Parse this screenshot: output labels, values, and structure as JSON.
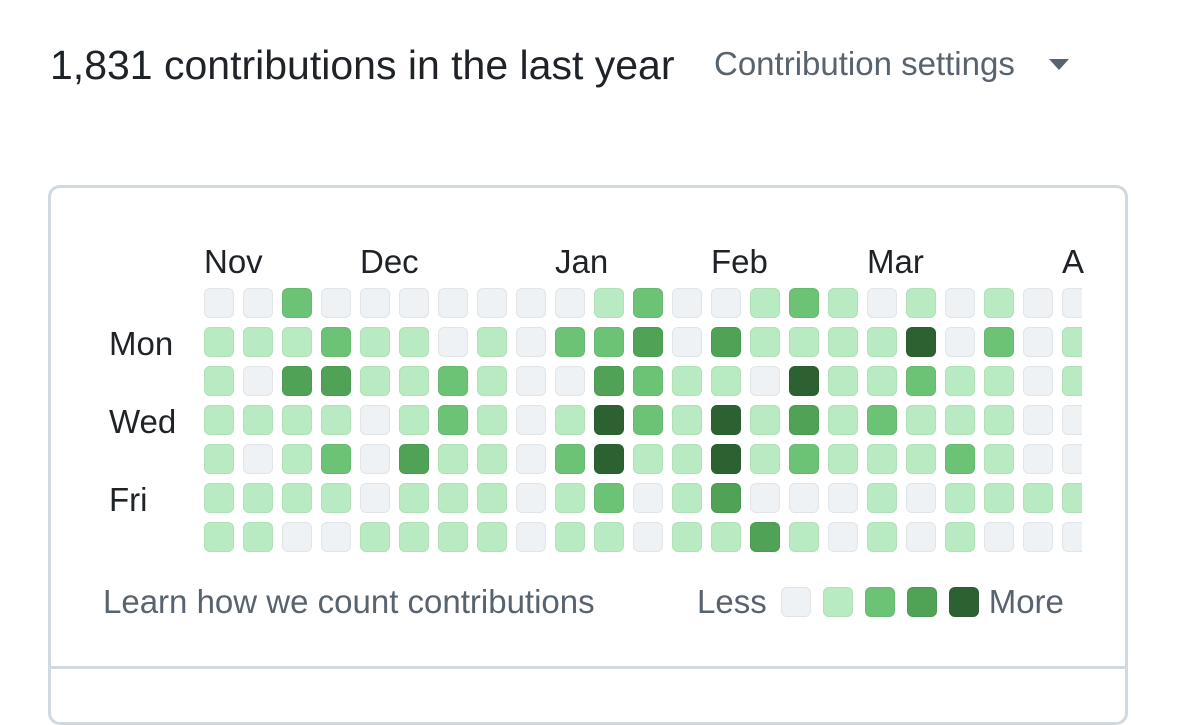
{
  "header": {
    "title": "1,831 contributions in the last year",
    "settings_label": "Contribution settings"
  },
  "colors": {
    "level0": "#eff2f5",
    "level1": "#b9ebc2",
    "level2": "#6cc275",
    "level3": "#4fa256",
    "level4": "#2c6131"
  },
  "graph": {
    "months": [
      "Nov",
      "Dec",
      "Jan",
      "Feb",
      "Mar",
      "A"
    ],
    "day_labels": [
      "Mon",
      "Wed",
      "Fri"
    ],
    "weeks": [
      [
        0,
        1,
        1,
        1,
        1,
        1,
        1
      ],
      [
        0,
        1,
        0,
        1,
        0,
        1,
        1
      ],
      [
        2,
        1,
        3,
        1,
        1,
        1,
        0
      ],
      [
        0,
        2,
        3,
        1,
        2,
        1,
        0
      ],
      [
        0,
        1,
        1,
        0,
        0,
        0,
        1
      ],
      [
        0,
        1,
        1,
        1,
        3,
        1,
        1
      ],
      [
        0,
        0,
        2,
        2,
        1,
        1,
        1
      ],
      [
        0,
        1,
        1,
        1,
        1,
        1,
        1
      ],
      [
        0,
        0,
        0,
        0,
        0,
        0,
        0
      ],
      [
        0,
        2,
        0,
        1,
        2,
        1,
        1
      ],
      [
        1,
        2,
        3,
        4,
        4,
        2,
        1
      ],
      [
        2,
        3,
        2,
        2,
        1,
        0,
        0
      ],
      [
        0,
        0,
        1,
        1,
        1,
        1,
        1
      ],
      [
        0,
        3,
        1,
        4,
        4,
        3,
        1
      ],
      [
        1,
        1,
        0,
        1,
        1,
        0,
        3
      ],
      [
        2,
        1,
        4,
        3,
        2,
        0,
        1
      ],
      [
        1,
        1,
        1,
        1,
        1,
        0,
        0
      ],
      [
        0,
        1,
        1,
        2,
        1,
        1,
        1
      ],
      [
        1,
        4,
        2,
        1,
        1,
        0,
        0
      ],
      [
        0,
        0,
        1,
        1,
        2,
        1,
        1
      ],
      [
        1,
        2,
        1,
        1,
        1,
        1,
        0
      ],
      [
        0,
        0,
        0,
        0,
        0,
        1,
        0
      ],
      [
        0,
        1,
        1,
        0,
        0,
        1,
        0
      ]
    ]
  },
  "footer": {
    "learn_link": "Learn how we count contributions",
    "less_label": "Less",
    "more_label": "More"
  }
}
